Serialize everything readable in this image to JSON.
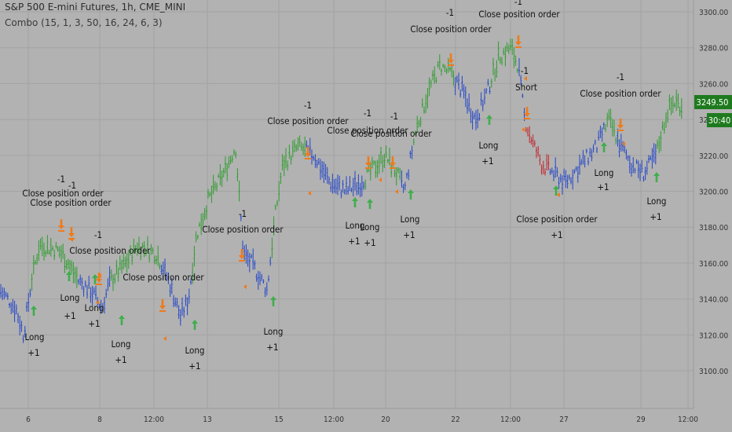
{
  "header": {
    "symbol_line": "S&P 500 E-mini Futures, 1h, CME_MINI",
    "strategy_line": "Combo (15, 1, 3, 50, 16, 24, 6, 3)"
  },
  "colors": {
    "background": "#b2b2b2",
    "grid": "#a3a3a3",
    "up": "#2e9c2e",
    "down": "#2346c8",
    "short": "#c0272d",
    "entry_arrow": "#3fae4c",
    "exit_arrow": "#f07a1a",
    "price_tag": "#1e7a1e"
  },
  "chart_data": {
    "type": "candlestick",
    "y_ticks": [
      "3100.00",
      "3120.00",
      "3140.00",
      "3160.00",
      "3180.00",
      "3200.00",
      "3220.00",
      "3240.00",
      "3260.00",
      "3280.00",
      "3300.00"
    ],
    "ylim": [
      3090,
      3305
    ],
    "x_ticks": [
      "6",
      "8",
      "12:00",
      "13",
      "15",
      "12:00",
      "20",
      "22",
      "12:00",
      "27",
      "29",
      "12:00"
    ],
    "last_price": "3249.50",
    "countdown": "30:40",
    "price_path": [
      [
        0,
        3145
      ],
      [
        20,
        3135
      ],
      [
        30,
        3120
      ],
      [
        40,
        3150
      ],
      [
        50,
        3170
      ],
      [
        70,
        3168
      ],
      [
        80,
        3165
      ],
      [
        100,
        3150
      ],
      [
        115,
        3145
      ],
      [
        130,
        3135
      ],
      [
        140,
        3150
      ],
      [
        160,
        3160
      ],
      [
        175,
        3170
      ],
      [
        200,
        3165
      ],
      [
        215,
        3150
      ],
      [
        230,
        3130
      ],
      [
        240,
        3140
      ],
      [
        250,
        3175
      ],
      [
        265,
        3195
      ],
      [
        285,
        3210
      ],
      [
        300,
        3225
      ],
      [
        310,
        3165
      ],
      [
        320,
        3160
      ],
      [
        340,
        3145
      ],
      [
        350,
        3185
      ],
      [
        360,
        3215
      ],
      [
        380,
        3225
      ],
      [
        400,
        3220
      ],
      [
        420,
        3205
      ],
      [
        440,
        3200
      ],
      [
        460,
        3205
      ],
      [
        470,
        3210
      ],
      [
        490,
        3220
      ],
      [
        505,
        3210
      ],
      [
        515,
        3200
      ],
      [
        530,
        3235
      ],
      [
        545,
        3255
      ],
      [
        560,
        3270
      ],
      [
        575,
        3265
      ],
      [
        590,
        3255
      ],
      [
        605,
        3240
      ],
      [
        620,
        3255
      ],
      [
        635,
        3275
      ],
      [
        650,
        3280
      ],
      [
        660,
        3270
      ],
      [
        668,
        3240
      ],
      [
        680,
        3225
      ],
      [
        690,
        3215
      ],
      [
        705,
        3210
      ],
      [
        720,
        3205
      ],
      [
        740,
        3215
      ],
      [
        760,
        3225
      ],
      [
        775,
        3240
      ],
      [
        790,
        3225
      ],
      [
        805,
        3215
      ],
      [
        820,
        3210
      ],
      [
        835,
        3220
      ],
      [
        850,
        3245
      ],
      [
        860,
        3250
      ],
      [
        868,
        3248
      ]
    ],
    "candle_segments": [
      {
        "from": 0,
        "to": 40,
        "color": "down"
      },
      {
        "from": 40,
        "to": 100,
        "color": "up"
      },
      {
        "from": 100,
        "to": 140,
        "color": "down"
      },
      {
        "from": 140,
        "to": 205,
        "color": "up"
      },
      {
        "from": 205,
        "to": 245,
        "color": "down"
      },
      {
        "from": 245,
        "to": 305,
        "color": "up"
      },
      {
        "from": 305,
        "to": 345,
        "color": "down"
      },
      {
        "from": 345,
        "to": 390,
        "color": "up"
      },
      {
        "from": 390,
        "to": 465,
        "color": "down"
      },
      {
        "from": 465,
        "to": 510,
        "color": "up"
      },
      {
        "from": 510,
        "to": 525,
        "color": "down"
      },
      {
        "from": 525,
        "to": 578,
        "color": "up"
      },
      {
        "from": 578,
        "to": 625,
        "color": "down"
      },
      {
        "from": 625,
        "to": 660,
        "color": "up"
      },
      {
        "from": 660,
        "to": 668,
        "color": "down"
      },
      {
        "from": 668,
        "to": 700,
        "color": "short"
      },
      {
        "from": 700,
        "to": 770,
        "color": "down"
      },
      {
        "from": 770,
        "to": 785,
        "color": "up"
      },
      {
        "from": 785,
        "to": 835,
        "color": "down"
      },
      {
        "from": 835,
        "to": 870,
        "color": "up"
      }
    ],
    "annotations": [
      {
        "text": "Close position order",
        "x": 80,
        "y": 250
      },
      {
        "text": "Close position order",
        "x": 90,
        "y": 262
      },
      {
        "text": "-1",
        "x": 78,
        "y": 232
      },
      {
        "text": "-1",
        "x": 92,
        "y": 240
      },
      {
        "text": "-1",
        "x": 125,
        "y": 303
      },
      {
        "text": "Close position order",
        "x": 140,
        "y": 323
      },
      {
        "text": "Close position order",
        "x": 208,
        "y": 357
      },
      {
        "text": "Close position order",
        "x": 309,
        "y": 296
      },
      {
        "text": "-1",
        "x": 309,
        "y": 276
      },
      {
        "text": "-1",
        "x": 392,
        "y": 138
      },
      {
        "text": "Close position order",
        "x": 392,
        "y": 158
      },
      {
        "text": "Close position order",
        "x": 468,
        "y": 170
      },
      {
        "text": "Close position order",
        "x": 498,
        "y": 174
      },
      {
        "text": "-1",
        "x": 468,
        "y": 148
      },
      {
        "text": "-1",
        "x": 502,
        "y": 152
      },
      {
        "text": "-1",
        "x": 573,
        "y": 20
      },
      {
        "text": "Close position order",
        "x": 574,
        "y": 41
      },
      {
        "text": "-1",
        "x": 660,
        "y": 6
      },
      {
        "text": "Close position order",
        "x": 661,
        "y": 22
      },
      {
        "text": "-1",
        "x": 668,
        "y": 94
      },
      {
        "text": "Short",
        "x": 670,
        "y": 115
      },
      {
        "text": "-1",
        "x": 790,
        "y": 102
      },
      {
        "text": "Close position order",
        "x": 790,
        "y": 123
      },
      {
        "text": "Long",
        "x": 44,
        "y": 433
      },
      {
        "text": "+1",
        "x": 43,
        "y": 453
      },
      {
        "text": "Long",
        "x": 89,
        "y": 383
      },
      {
        "text": "+1",
        "x": 89,
        "y": 406
      },
      {
        "text": "Long",
        "x": 120,
        "y": 396
      },
      {
        "text": "+1",
        "x": 120,
        "y": 416
      },
      {
        "text": "Long",
        "x": 154,
        "y": 442
      },
      {
        "text": "+1",
        "x": 154,
        "y": 462
      },
      {
        "text": "Long",
        "x": 248,
        "y": 450
      },
      {
        "text": "+1",
        "x": 248,
        "y": 470
      },
      {
        "text": "Long",
        "x": 348,
        "y": 426
      },
      {
        "text": "+1",
        "x": 347,
        "y": 446
      },
      {
        "text": "Long",
        "x": 452,
        "y": 291
      },
      {
        "text": "+1",
        "x": 451,
        "y": 311
      },
      {
        "text": "Long",
        "x": 471,
        "y": 293
      },
      {
        "text": "+1",
        "x": 471,
        "y": 313
      },
      {
        "text": "Long",
        "x": 522,
        "y": 283
      },
      {
        "text": "+1",
        "x": 521,
        "y": 303
      },
      {
        "text": "Long",
        "x": 622,
        "y": 189
      },
      {
        "text": "+1",
        "x": 621,
        "y": 209
      },
      {
        "text": "Close position order",
        "x": 709,
        "y": 283
      },
      {
        "text": "+1",
        "x": 709,
        "y": 303
      },
      {
        "text": "Long",
        "x": 769,
        "y": 224
      },
      {
        "text": "+1",
        "x": 768,
        "y": 242
      },
      {
        "text": "Long",
        "x": 836,
        "y": 260
      },
      {
        "text": "+1",
        "x": 835,
        "y": 280
      }
    ],
    "up_arrows": [
      [
        43,
        396
      ],
      [
        88,
        352
      ],
      [
        121,
        356
      ],
      [
        155,
        408
      ],
      [
        248,
        414
      ],
      [
        348,
        384
      ],
      [
        452,
        258
      ],
      [
        471,
        260
      ],
      [
        523,
        248
      ],
      [
        623,
        153
      ],
      [
        708,
        243
      ],
      [
        769,
        188
      ],
      [
        836,
        226
      ]
    ],
    "down_arrows": [
      [
        78,
        287
      ],
      [
        91,
        297
      ],
      [
        126,
        355
      ],
      [
        207,
        389
      ],
      [
        308,
        325
      ],
      [
        392,
        195
      ],
      [
        469,
        207
      ],
      [
        500,
        207
      ],
      [
        574,
        76
      ],
      [
        660,
        53
      ],
      [
        671,
        144
      ],
      [
        790,
        159
      ]
    ],
    "small_left_markers": [
      [
        92,
        305
      ],
      [
        128,
        351
      ],
      [
        125,
        385
      ],
      [
        211,
        431
      ],
      [
        313,
        365
      ],
      [
        395,
        246
      ],
      [
        485,
        229
      ],
      [
        506,
        244
      ],
      [
        670,
        100
      ],
      [
        667,
        165
      ],
      [
        712,
        248
      ],
      [
        795,
        183
      ]
    ]
  }
}
